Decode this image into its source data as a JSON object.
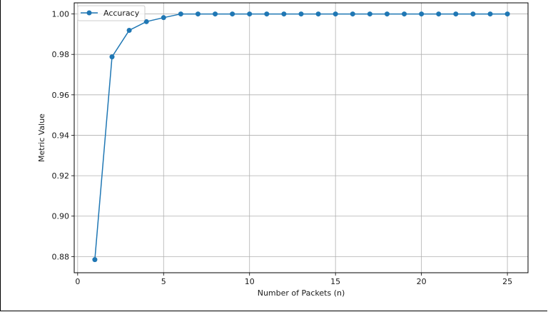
{
  "chart_data": {
    "type": "line",
    "title": "",
    "xlabel": "Number of Packets (n)",
    "ylabel": "Metric Value",
    "xlim": [
      -0.2,
      26.2
    ],
    "ylim": [
      0.872,
      1.0055
    ],
    "xticks": [
      0,
      5,
      10,
      15,
      20,
      25
    ],
    "yticks": [
      0.88,
      0.9,
      0.92,
      0.94,
      0.96,
      0.98,
      1.0
    ],
    "xtick_labels": [
      "0",
      "5",
      "10",
      "15",
      "20",
      "25"
    ],
    "ytick_labels": [
      "0.88",
      "0.90",
      "0.92",
      "0.94",
      "0.96",
      "0.98",
      "1.00"
    ],
    "grid": true,
    "legend_position": "top-left",
    "series": [
      {
        "name": "Accuracy",
        "color": "#1f77b4",
        "marker": "circle",
        "x": [
          1,
          2,
          3,
          4,
          5,
          6,
          7,
          8,
          9,
          10,
          11,
          12,
          13,
          14,
          15,
          16,
          17,
          18,
          19,
          20,
          21,
          22,
          23,
          24,
          25
        ],
        "y": [
          0.8785,
          0.9788,
          0.9919,
          0.9962,
          0.9982,
          1.0,
          1.0,
          1.0,
          1.0,
          1.0,
          1.0,
          1.0,
          1.0,
          1.0,
          1.0,
          1.0,
          1.0,
          1.0,
          1.0,
          1.0,
          1.0,
          1.0,
          1.0,
          1.0,
          1.0
        ]
      }
    ]
  }
}
